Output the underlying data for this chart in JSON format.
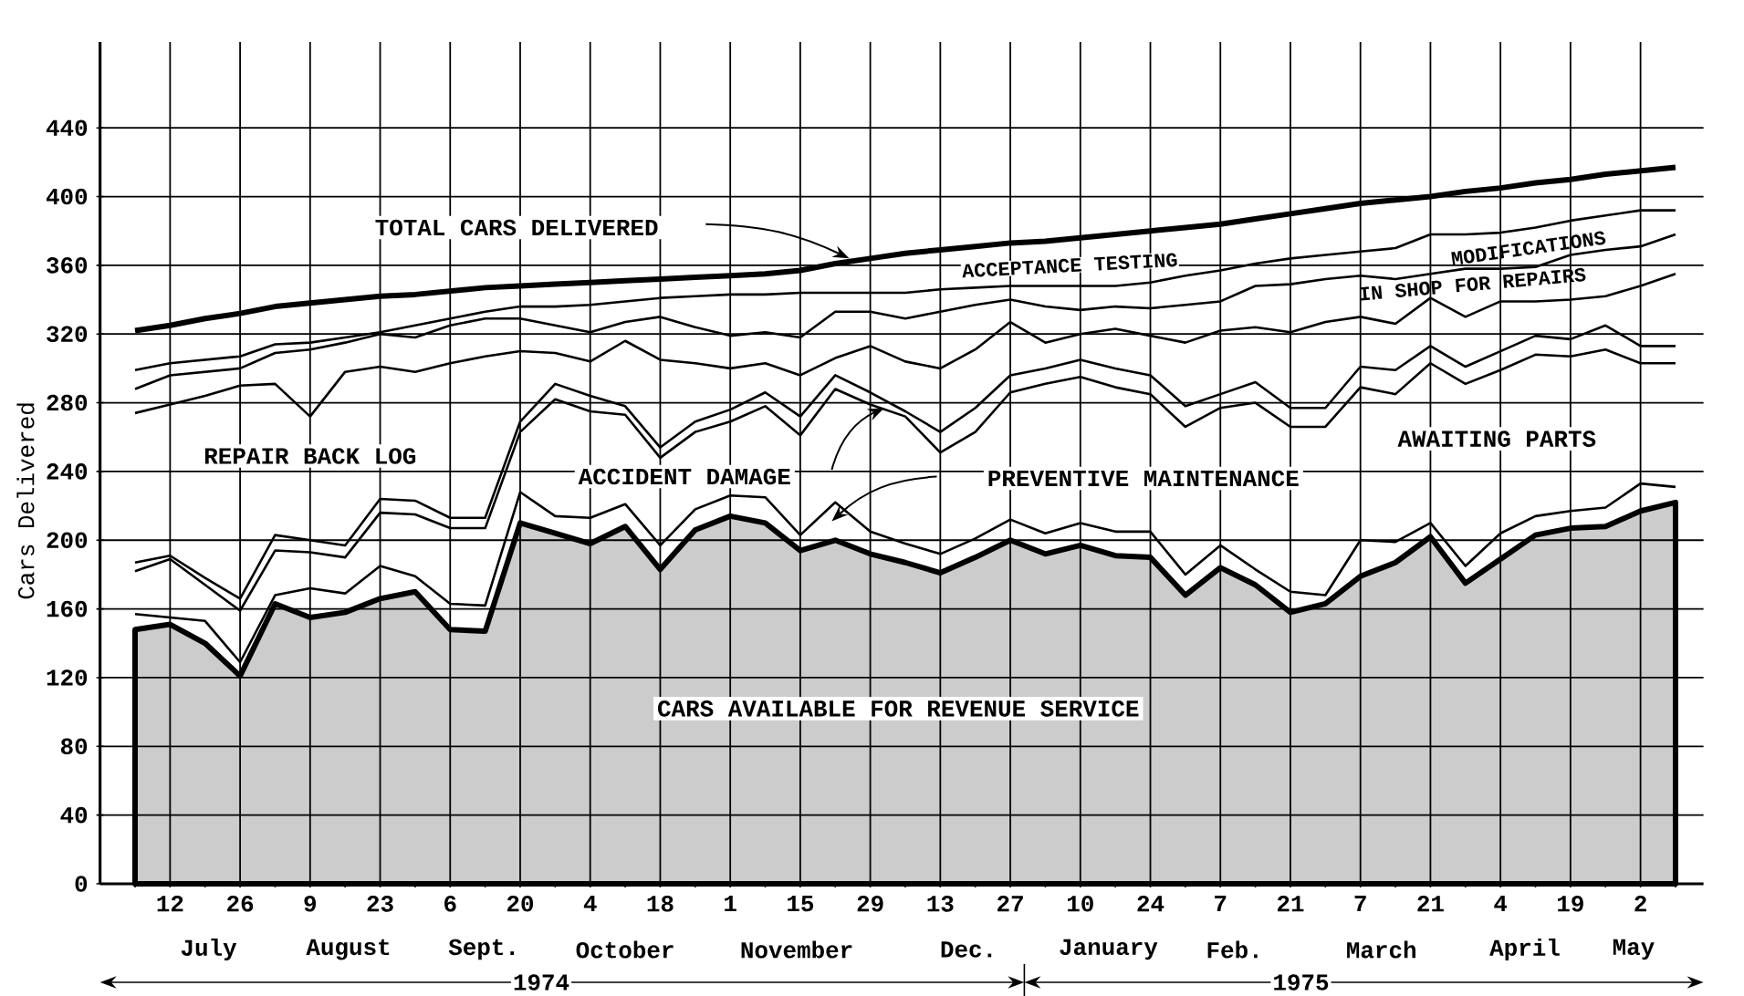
{
  "chart_data": {
    "type": "line",
    "ylabel": "Cars Delivered",
    "ylim": [
      0,
      490
    ],
    "yticks": [
      0,
      40,
      80,
      120,
      160,
      200,
      240,
      280,
      320,
      360,
      400,
      440
    ],
    "grid": true,
    "marker": "none",
    "line_style": "solid",
    "categories": [
      null,
      "12",
      null,
      "26",
      null,
      "9",
      null,
      "23",
      null,
      "6",
      null,
      "20",
      null,
      "4",
      null,
      "18",
      null,
      "1",
      null,
      "15",
      null,
      "29",
      null,
      "13",
      null,
      "27",
      null,
      "10",
      null,
      "24",
      null,
      "7",
      null,
      "21",
      null,
      "7",
      null,
      "21",
      null,
      "4",
      null,
      "19",
      null,
      "2",
      null
    ],
    "series": [
      {
        "name": "TOTAL CARS DELIVERED",
        "color": "#000000",
        "values": [
          322,
          325,
          329,
          332,
          336,
          338,
          340,
          342,
          343,
          345,
          347,
          348,
          349,
          350,
          351,
          352,
          353,
          354,
          355,
          357,
          361,
          364,
          367,
          369,
          371,
          373,
          374,
          376,
          378,
          380,
          382,
          384,
          387,
          390,
          393,
          396,
          398,
          400,
          403,
          405,
          408,
          410,
          413,
          415,
          417
        ]
      },
      {
        "color": "#000000",
        "values": [
          299,
          303,
          305,
          307,
          314,
          315,
          318,
          321,
          325,
          329,
          333,
          336,
          336,
          337,
          339,
          341,
          342,
          343,
          343,
          344,
          344,
          344,
          344,
          346,
          347,
          348,
          348,
          348,
          348,
          350,
          354,
          357,
          361,
          364,
          366,
          368,
          370,
          378,
          378,
          379,
          382,
          386,
          389,
          392,
          392
        ]
      },
      {
        "color": "#000000",
        "values": [
          288,
          296,
          298,
          300,
          309,
          311,
          315,
          320,
          318,
          325,
          329,
          329,
          325,
          321,
          327,
          330,
          324,
          319,
          321,
          318,
          333,
          333,
          329,
          333,
          337,
          340,
          336,
          334,
          336,
          335,
          337,
          339,
          348,
          349,
          352,
          354,
          352,
          355,
          358,
          358,
          359,
          366,
          369,
          371,
          378
        ]
      },
      {
        "color": "#000000",
        "values": [
          274,
          279,
          284,
          290,
          291,
          272,
          298,
          301,
          298,
          303,
          307,
          310,
          309,
          304,
          316,
          305,
          303,
          300,
          303,
          296,
          306,
          313,
          304,
          300,
          311,
          327,
          315,
          320,
          323,
          319,
          315,
          322,
          324,
          321,
          327,
          330,
          326,
          341,
          330,
          339,
          339,
          340,
          342,
          348,
          355
        ]
      },
      {
        "color": "#000000",
        "values": [
          187,
          191,
          178,
          166,
          203,
          200,
          197,
          224,
          223,
          213,
          213,
          269,
          291,
          284,
          278,
          254,
          269,
          276,
          286,
          272,
          296,
          286,
          275,
          263,
          277,
          296,
          300,
          305,
          300,
          296,
          278,
          285,
          292,
          277,
          277,
          301,
          299,
          313,
          301,
          310,
          319,
          317,
          325,
          313,
          313
        ]
      },
      {
        "color": "#000000",
        "values": [
          182,
          189,
          174,
          159,
          194,
          193,
          190,
          216,
          215,
          207,
          207,
          263,
          282,
          275,
          273,
          248,
          263,
          269,
          278,
          261,
          288,
          279,
          272,
          251,
          263,
          286,
          291,
          295,
          289,
          285,
          266,
          277,
          280,
          266,
          266,
          289,
          285,
          303,
          291,
          299,
          308,
          307,
          311,
          303,
          303
        ]
      },
      {
        "color": "#000000",
        "values": [
          157,
          155,
          153,
          129,
          168,
          172,
          169,
          185,
          179,
          163,
          162,
          228,
          214,
          213,
          221,
          197,
          218,
          226,
          225,
          203,
          222,
          205,
          198,
          192,
          201,
          212,
          204,
          210,
          205,
          205,
          180,
          197,
          183,
          170,
          168,
          200,
          199,
          210,
          185,
          204,
          214,
          217,
          219,
          233,
          231
        ]
      },
      {
        "name": "CARS AVAILABLE FOR REVENUE SERVICE",
        "type": "area",
        "color": "#000000",
        "values": [
          148,
          151,
          140,
          121,
          163,
          155,
          158,
          166,
          170,
          148,
          147,
          210,
          204,
          198,
          208,
          183,
          206,
          214,
          210,
          194,
          200,
          192,
          187,
          181,
          190,
          200,
          192,
          197,
          191,
          190,
          168,
          184,
          174,
          158,
          163,
          179,
          187,
          202,
          175,
          189,
          203,
          207,
          208,
          217,
          222
        ]
      }
    ],
    "annotations": [
      "ACCEPTANCE TESTING",
      "MODIFICATIONS",
      "IN SHOP FOR REPAIRS",
      "REPAIR BACK LOG",
      "AWAITING PARTS",
      "ACCIDENT DAMAGE",
      "PREVENTIVE MAINTENANCE",
      "July",
      "August",
      "Sept.",
      "October",
      "November",
      "Dec.",
      "January",
      "Feb.",
      "March",
      "April",
      "May",
      "1974",
      "1975"
    ]
  }
}
